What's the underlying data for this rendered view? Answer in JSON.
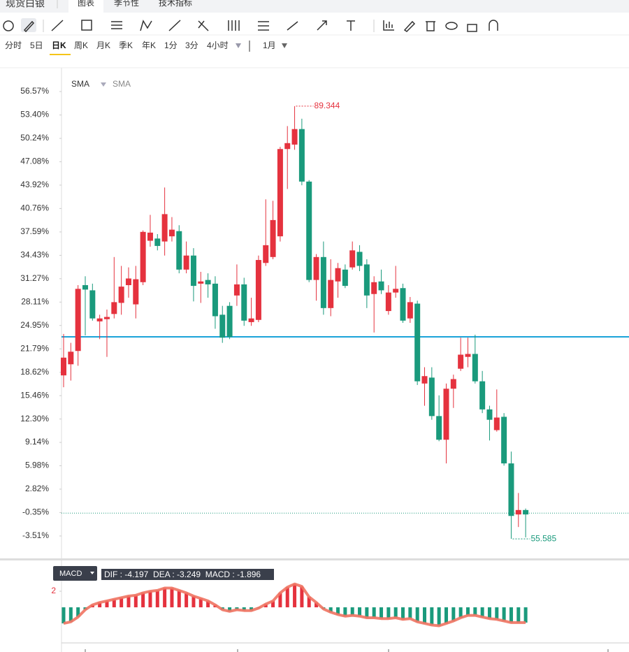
{
  "header": {
    "title": "现货白银",
    "tabs": [
      "图表",
      "季节性",
      "技术指标"
    ]
  },
  "timeframes": [
    "分时",
    "5日",
    "日K",
    "周K",
    "月K",
    "季K",
    "年K",
    "1分",
    "3分",
    "4小时"
  ],
  "selected_timeframe": 2,
  "period": "1月",
  "chart_data": [
    {
      "type": "candlestick",
      "indicators": [
        "SMA",
        "SMA"
      ],
      "ylim": [
        -6.63,
        59.5
      ],
      "yticks": [
        {
          "value": 56.57,
          "label": "56.57%"
        },
        {
          "value": 53.4,
          "label": "53.40%"
        },
        {
          "value": 50.24,
          "label": "50.24%"
        },
        {
          "value": 47.08,
          "label": "47.08%"
        },
        {
          "value": 43.92,
          "label": "43.92%"
        },
        {
          "value": 40.76,
          "label": "40.76%"
        },
        {
          "value": 37.59,
          "label": "37.59%"
        },
        {
          "value": 34.43,
          "label": "34.43%"
        },
        {
          "value": 31.27,
          "label": "31.27%"
        },
        {
          "value": 28.11,
          "label": "28.11%"
        },
        {
          "value": 24.95,
          "label": "24.95%"
        },
        {
          "value": 21.79,
          "label": "21.79%"
        },
        {
          "value": 18.62,
          "label": "18.62%"
        },
        {
          "value": 15.46,
          "label": "15.46%"
        },
        {
          "value": 12.3,
          "label": "12.30%"
        },
        {
          "value": 9.14,
          "label": "9.14%"
        },
        {
          "value": 5.98,
          "label": "5.98%"
        },
        {
          "value": 2.82,
          "label": "2.82%"
        },
        {
          "value": -0.35,
          "label": "-0.35%"
        },
        {
          "value": -3.51,
          "label": "-3.51%"
        }
      ],
      "up_color": "#e5323e",
      "down_color": "#1a9a7c",
      "series": {
        "open": [
          18.2,
          19.7,
          21.5,
          30.4,
          29.7,
          25.5,
          25.8,
          26.5,
          28.0,
          30.4,
          27.8,
          30.8,
          36.4,
          36.7,
          36.3,
          37.0,
          37.7,
          32.5,
          34.4,
          30.6,
          31.1,
          30.6,
          26.4,
          27.6,
          29.0,
          30.5,
          25.4,
          25.7,
          33.4,
          34.2,
          37.0,
          48.8,
          49.4,
          51.5,
          44.4,
          31.1,
          34.2,
          27.3,
          30.9,
          32.5,
          32.8,
          34.9,
          33.2,
          29.2,
          30.9,
          26.9,
          29.4,
          30.0,
          25.9,
          27.9,
          17.1,
          17.9,
          12.7,
          9.5,
          16.4,
          19.1,
          20.7,
          21.1,
          17.4,
          13.6,
          10.8,
          12.6,
          6.3,
          -0.6,
          0.0
        ],
        "high": [
          23.8,
          22.6,
          30.4,
          31.6,
          30.6,
          26.4,
          27.1,
          34.2,
          33.0,
          32.8,
          33.0,
          37.8,
          39.9,
          37.3,
          43.6,
          39.6,
          38.5,
          36.3,
          35.4,
          32.2,
          32.0,
          31.6,
          27.6,
          28.1,
          33.2,
          31.4,
          28.7,
          34.4,
          42.0,
          41.8,
          49.1,
          51.9,
          54.6,
          52.9,
          44.6,
          34.6,
          36.3,
          33.9,
          33.4,
          33.2,
          36.3,
          35.8,
          33.9,
          31.6,
          32.5,
          30.4,
          33.0,
          30.6,
          28.8,
          28.3,
          19.3,
          19.3,
          15.5,
          17.1,
          18.3,
          23.3,
          23.3,
          23.7,
          18.8,
          14.1,
          16.3,
          13.1,
          7.9,
          2.3,
          0.2
        ],
        "low": [
          16.6,
          17.5,
          19.5,
          23.6,
          25.6,
          23.1,
          20.7,
          25.9,
          26.4,
          28.7,
          25.9,
          30.4,
          35.6,
          35.1,
          34.4,
          36.3,
          32.0,
          32.0,
          28.2,
          28.0,
          28.7,
          24.5,
          22.6,
          23.1,
          27.6,
          24.9,
          24.9,
          25.4,
          33.0,
          33.9,
          36.3,
          43.4,
          48.7,
          43.9,
          30.8,
          28.3,
          26.4,
          26.2,
          28.7,
          30.0,
          32.5,
          32.3,
          27.3,
          24.0,
          29.2,
          26.4,
          28.7,
          25.3,
          25.3,
          16.9,
          14.1,
          12.2,
          9.3,
          6.3,
          13.8,
          18.8,
          19.3,
          17.1,
          13.1,
          9.4,
          10.6,
          6.0,
          -3.9,
          -2.3,
          -3.7
        ],
        "close": [
          20.6,
          21.4,
          29.9,
          29.8,
          25.9,
          25.9,
          26.1,
          28.1,
          30.2,
          31.3,
          31.2,
          37.6,
          37.5,
          35.7,
          40.0,
          37.9,
          32.5,
          34.4,
          30.3,
          30.9,
          30.5,
          26.2,
          23.3,
          23.4,
          30.5,
          25.6,
          25.9,
          33.8,
          35.8,
          39.2,
          48.8,
          49.6,
          51.5,
          44.4,
          31.1,
          34.2,
          27.3,
          31.1,
          32.7,
          30.3,
          35.1,
          33.0,
          29.0,
          30.8,
          29.7,
          29.4,
          29.9,
          25.6,
          28.1,
          17.4,
          18.1,
          12.7,
          9.5,
          16.4,
          17.7,
          21.0,
          21.1,
          17.4,
          13.6,
          12.2,
          12.5,
          6.3,
          -0.8,
          0.0,
          -0.6
        ]
      },
      "high_label": "89.344",
      "low_label": "55.585",
      "hlines": [
        {
          "value": 23.41,
          "color": "#1aa3d9",
          "style": "solid"
        },
        {
          "value": -0.42,
          "color": "#1a9a7c",
          "style": "dotted"
        }
      ]
    },
    {
      "type": "macd",
      "label": "MACD",
      "readout": "DIF : -4.197  DEA : -3.249  MACD : -1.896",
      "ylim": [
        -4.43,
        5.57
      ],
      "yticks": [
        2
      ],
      "up_color": "#e5323e",
      "down_color": "#1a9a7c",
      "line_color": "#f07362",
      "values": [
        -2.0,
        -1.8,
        -1.2,
        -0.3,
        0.3,
        0.6,
        0.8,
        1.0,
        1.2,
        1.4,
        1.5,
        1.8,
        2.0,
        2.1,
        2.4,
        2.4,
        2.1,
        1.8,
        1.4,
        1.1,
        0.8,
        0.3,
        -0.3,
        -0.5,
        -0.3,
        -0.4,
        -0.4,
        -0.1,
        0.4,
        0.8,
        1.8,
        2.5,
        2.9,
        2.6,
        1.3,
        0.6,
        -0.2,
        -0.6,
        -0.9,
        -1.1,
        -1.0,
        -1.1,
        -1.3,
        -1.3,
        -1.4,
        -1.4,
        -1.3,
        -1.5,
        -1.4,
        -1.8,
        -2.0,
        -2.2,
        -2.3,
        -2.0,
        -1.7,
        -1.3,
        -1.0,
        -1.0,
        -1.2,
        -1.4,
        -1.5,
        -1.7,
        -1.9,
        -1.9,
        -1.9
      ]
    }
  ]
}
